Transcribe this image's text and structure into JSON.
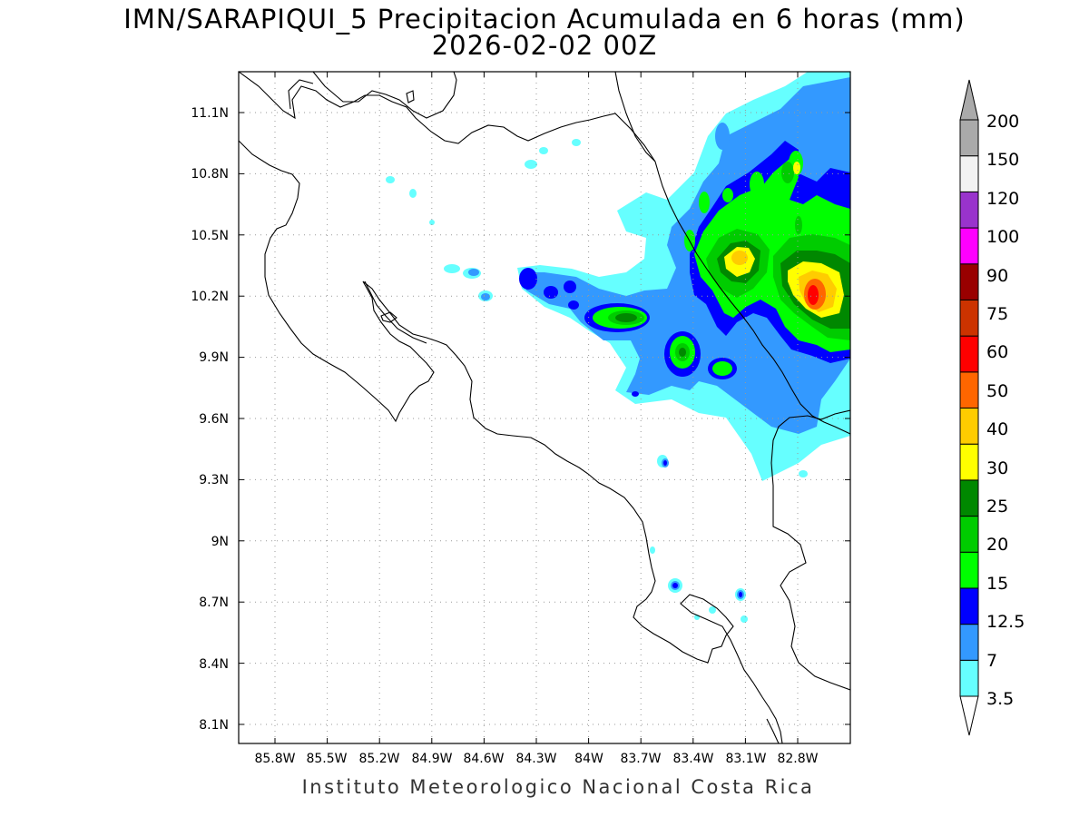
{
  "map": {
    "title": "IMN/SARAPIQUI_5 Precipitacion Acumulada en 6 horas (mm)",
    "subtitle": "2026-02-02 00Z",
    "credit": "Instituto Meteorologico Nacional Costa Rica",
    "variable_units": "mm",
    "lon_ticks": [
      "85.8W",
      "85.5W",
      "85.2W",
      "84.9W",
      "84.6W",
      "84.3W",
      "84W",
      "83.7W",
      "83.4W",
      "83.1W",
      "82.8W"
    ],
    "lat_ticks": [
      "11.1N",
      "10.8N",
      "10.5N",
      "10.2N",
      "9.9N",
      "9.6N",
      "9.3N",
      "9N",
      "8.7N",
      "8.4N",
      "8.1N"
    ],
    "gridlines": "dotted",
    "background": "#ffffff",
    "coastline_color": "#000000"
  },
  "colorbar": {
    "levels": [
      "3.5",
      "7",
      "12.5",
      "15",
      "20",
      "25",
      "30",
      "40",
      "50",
      "60",
      "75",
      "90",
      "100",
      "120",
      "150",
      "200"
    ],
    "colors": [
      "#66ffff",
      "#3399ff",
      "#0000ff",
      "#00ff00",
      "#00cc00",
      "#008800",
      "#ffff00",
      "#ffcc00",
      "#ff6600",
      "#ff0000",
      "#cc3300",
      "#990000",
      "#ff00ff",
      "#9933cc",
      "#f2f2f2",
      "#aaaaaa"
    ],
    "top_arrow_color": "#aaaaaa",
    "bottom_arrow_color": "#ffffff"
  }
}
